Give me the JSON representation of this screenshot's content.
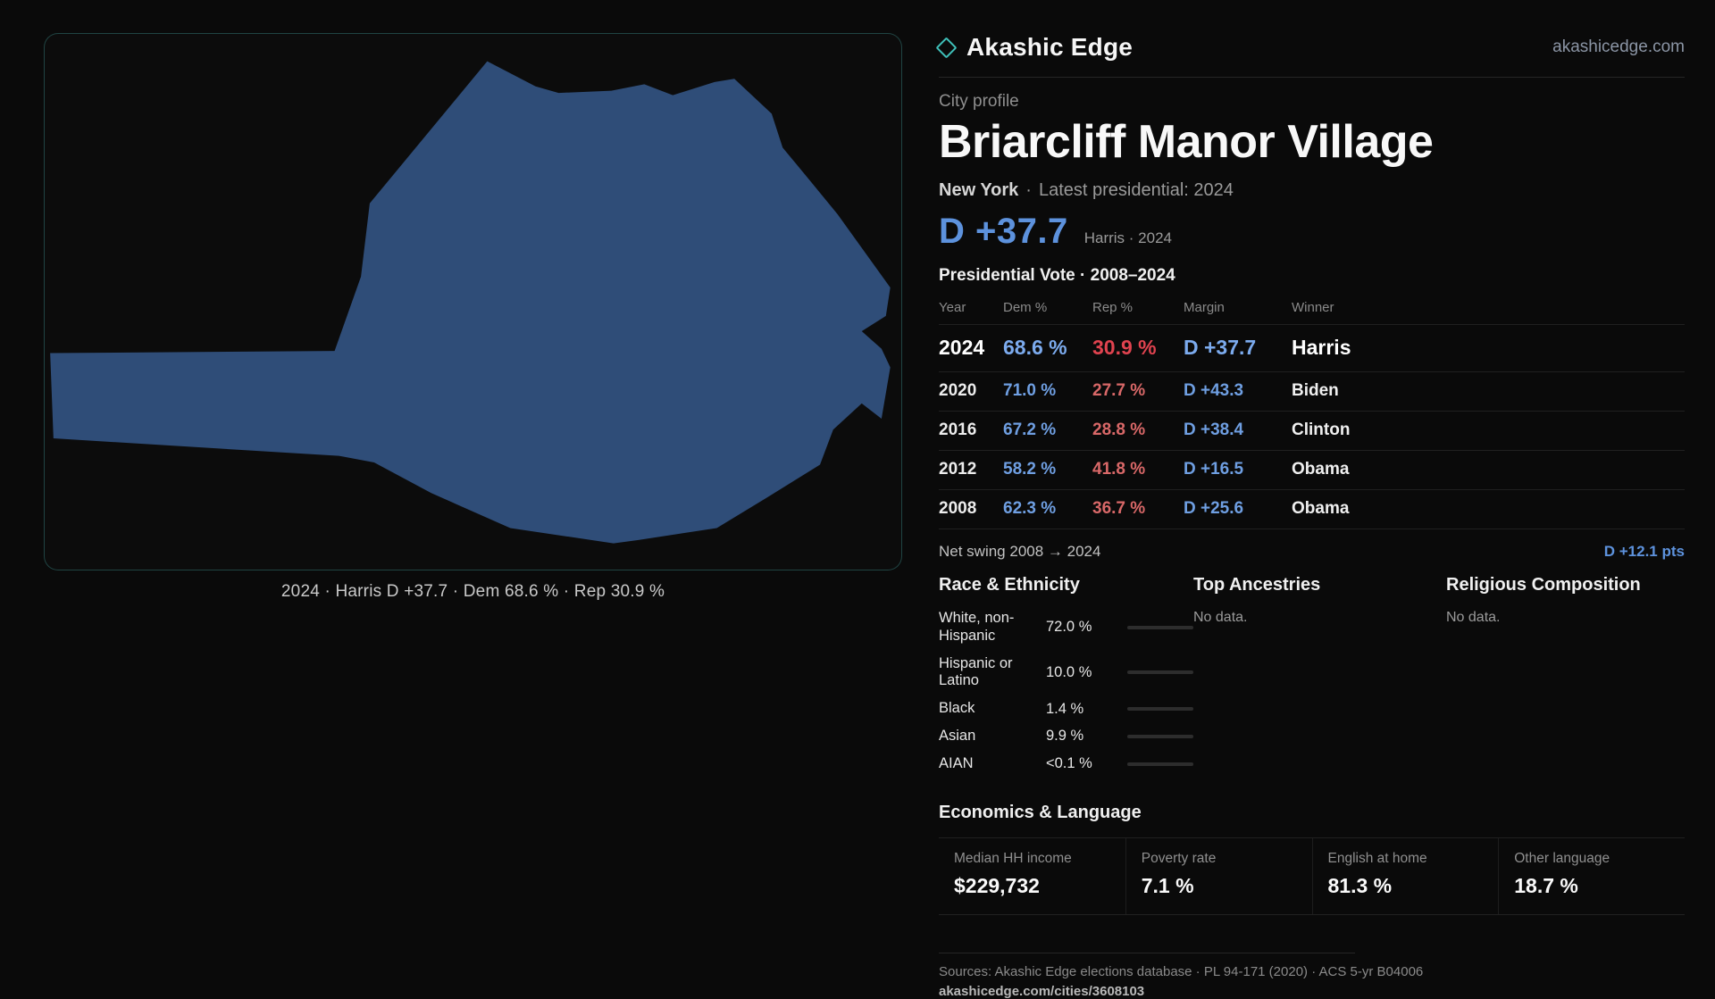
{
  "header": {
    "brand": "Akashic Edge",
    "site": "akashicedge.com"
  },
  "profile": {
    "eyebrow": "City profile",
    "city": "Briarcliff Manor Village",
    "state": "New York",
    "sep": "·",
    "latest": "Latest presidential: 2024"
  },
  "hero": {
    "margin": "D +37.7",
    "note": "Harris · 2024"
  },
  "map": {
    "caption": "2024 · Harris D +37.7 · Dem 68.6 % · Rep 30.9 %",
    "shape_color": "#2f4d78"
  },
  "table": {
    "title": "Presidential Vote · 2008–2024",
    "columns": [
      "Year",
      "Dem %",
      "Rep %",
      "Margin",
      "Winner"
    ],
    "rows": [
      {
        "year": "2024",
        "dem": "68.6 %",
        "rep": "30.9 %",
        "margin": "D +37.7",
        "winner": "Harris"
      },
      {
        "year": "2020",
        "dem": "71.0 %",
        "rep": "27.7 %",
        "margin": "D +43.3",
        "winner": "Biden"
      },
      {
        "year": "2016",
        "dem": "67.2 %",
        "rep": "28.8 %",
        "margin": "D +38.4",
        "winner": "Clinton"
      },
      {
        "year": "2012",
        "dem": "58.2 %",
        "rep": "41.8 %",
        "margin": "D +16.5",
        "winner": "Obama"
      },
      {
        "year": "2008",
        "dem": "62.3 %",
        "rep": "36.7 %",
        "margin": "D +25.6",
        "winner": "Obama"
      }
    ]
  },
  "net_swing": {
    "label": "Net swing 2008 → 2024",
    "value": "D +12.1 pts"
  },
  "demographics": {
    "race_title": "Race & Ethnicity",
    "races": [
      {
        "label": "White, non-Hispanic",
        "value": "72.0 %",
        "pct": 72,
        "color": "#98a4b8"
      },
      {
        "label": "Hispanic or Latino",
        "value": "10.0 %",
        "pct": 10,
        "color": "#e8a23c"
      },
      {
        "label": "Black",
        "value": "1.4 %",
        "pct": 1.4,
        "color": "#d6d6d6"
      },
      {
        "label": "Asian",
        "value": "9.9 %",
        "pct": 9.9,
        "color": "#2fc08c"
      },
      {
        "label": "AIAN",
        "value": "<0.1 %",
        "pct": 0,
        "color": "#d6d6d6"
      }
    ],
    "ancestries_title": "Top Ancestries",
    "ancestries_empty": "No data.",
    "religion_title": "Religious Composition",
    "religion_empty": "No data."
  },
  "economics": {
    "title": "Economics & Language",
    "stats": [
      {
        "label": "Median HH income",
        "value": "$229,732"
      },
      {
        "label": "Poverty rate",
        "value": "7.1 %"
      },
      {
        "label": "English at home",
        "value": "81.3 %"
      },
      {
        "label": "Other language",
        "value": "18.7 %"
      }
    ]
  },
  "footer": {
    "sources": "Sources: Akashic Edge elections database · PL 94-171 (2020) · ACS 5-yr B04006",
    "link": "akashicedge.com/cities/3608103"
  },
  "colors": {
    "dem_blue": "#5d92dd",
    "rep_red": "#e0434f",
    "accent_teal": "#3fc1ba"
  }
}
